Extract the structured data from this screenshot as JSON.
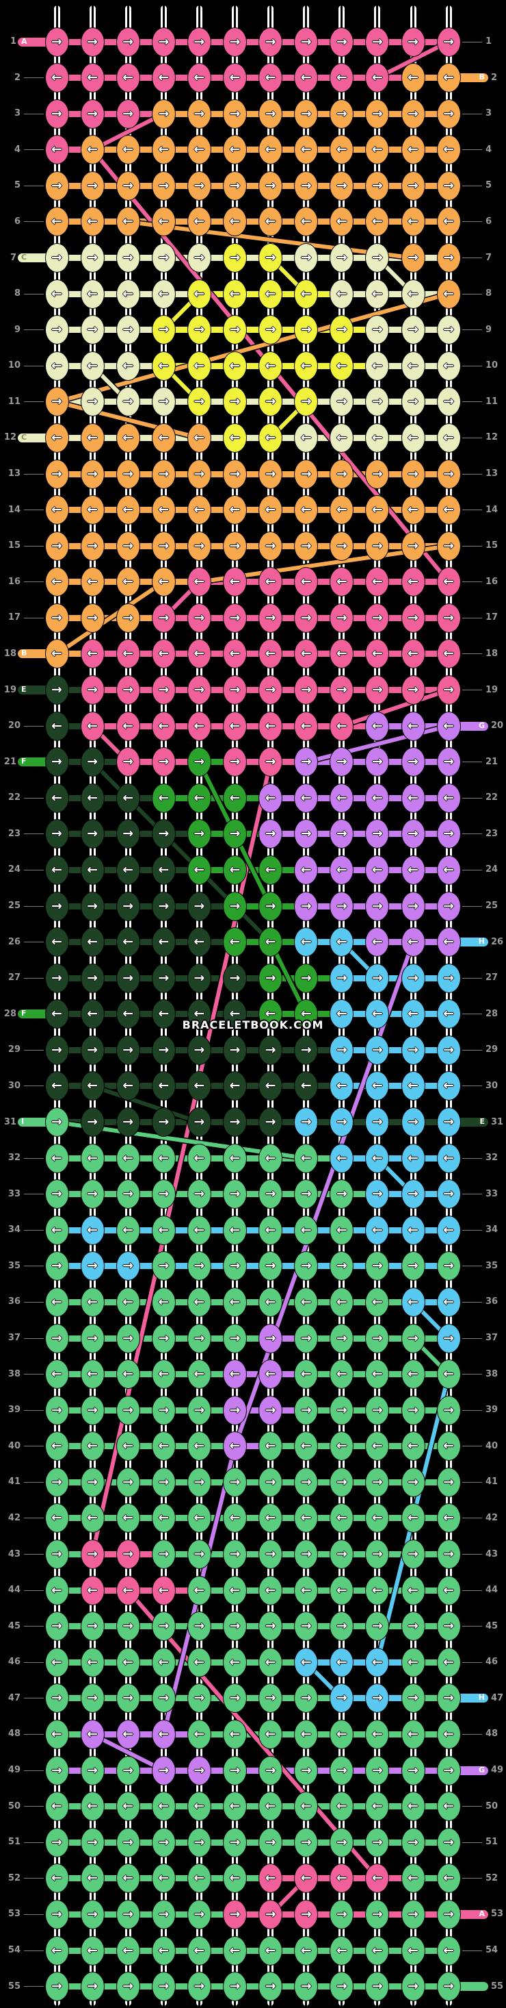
{
  "watermark": "BRACELETBOOK.COM",
  "arrows": {
    "R": "→",
    "L": "←"
  },
  "colors": {
    "P": "#F2609C",
    "O": "#F8A94E",
    "C": "#EAEDBF",
    "Y": "#F1F23C",
    "D": "#1E4224",
    "K": "#2BA22B",
    "G": "#5ACD7F",
    "V": "#C77CEF",
    "B": "#59C9F1"
  },
  "ui": {
    "number_color": "#9b9b9b",
    "line_color": "#7d7d7d",
    "background": "#000000"
  },
  "grid": {
    "rows": 55,
    "cols": 12
  },
  "rows": [
    {
      "n": 1,
      "d": "R",
      "k": "PPPPPPPPPPPP",
      "ll": "A"
    },
    {
      "n": 2,
      "d": "L",
      "k": "PPPPPPPPPPOO",
      "rl": "B"
    },
    {
      "n": 3,
      "d": "R",
      "k": "PPPOOOOOOOOO"
    },
    {
      "n": 4,
      "d": "L",
      "k": "POOOOOOOOOOO"
    },
    {
      "n": 5,
      "d": "R",
      "k": "OOOOOOOOOOOO"
    },
    {
      "n": 6,
      "d": "L",
      "k": "OOOOOOOOOOOO"
    },
    {
      "n": 7,
      "d": "R",
      "k": "CCCCCYYCCCOO",
      "ll": "C"
    },
    {
      "n": 8,
      "d": "L",
      "k": "CCCCYYYYCCCO"
    },
    {
      "n": 9,
      "d": "R",
      "k": "CCCYYYYYYCCC"
    },
    {
      "n": 10,
      "d": "L",
      "k": "CCCYYYYYYCCC"
    },
    {
      "n": 11,
      "d": "R",
      "k": "OCCCYYYYCCCC"
    },
    {
      "n": 12,
      "d": "L",
      "k": "OOOOOYYCCCCC",
      "ll": "C"
    },
    {
      "n": 13,
      "d": "R",
      "k": "OOOOOOOOOOOO"
    },
    {
      "n": 14,
      "d": "L",
      "k": "OOOOOOOOOOOO"
    },
    {
      "n": 15,
      "d": "R",
      "k": "OOOOOOOOOOOO"
    },
    {
      "n": 16,
      "d": "L",
      "k": "OOOOPPPPPPPP"
    },
    {
      "n": 17,
      "d": "R",
      "k": "OOOPPPPPPPPP"
    },
    {
      "n": 18,
      "d": "L",
      "k": "OPPPPPPPPPPP",
      "ll": "B"
    },
    {
      "n": 19,
      "d": "R",
      "k": "DPPPPPPPPPPP",
      "ll": "E"
    },
    {
      "n": 20,
      "d": "L",
      "k": "DPPPPPPPPVVV",
      "rl": "G"
    },
    {
      "n": 21,
      "d": "R",
      "k": "DDPPKPPVVVVV",
      "ll": "F"
    },
    {
      "n": 22,
      "d": "L",
      "k": "DDDKKKVVVVVV"
    },
    {
      "n": 23,
      "d": "R",
      "k": "DDDDKKVVVVVV"
    },
    {
      "n": 24,
      "d": "L",
      "k": "DDDDKKKVVVVV"
    },
    {
      "n": 25,
      "d": "R",
      "k": "DDDDDKKVVVVV"
    },
    {
      "n": 26,
      "d": "L",
      "k": "DDDDDKKBBVVV",
      "rl": "H"
    },
    {
      "n": 27,
      "d": "R",
      "k": "DDDDDDKKBBBB"
    },
    {
      "n": 28,
      "d": "L",
      "k": "DDDDDDKKBBBB",
      "ll": "F"
    },
    {
      "n": 29,
      "d": "R",
      "k": "DDDDDDDDBBBB"
    },
    {
      "n": 30,
      "d": "L",
      "k": "DDDDDDDDBBBB"
    },
    {
      "n": 31,
      "d": "R",
      "k": "GDDDDDDBBBBB",
      "ll": "I",
      "rl": "E"
    },
    {
      "n": 32,
      "d": "L",
      "k": "GGGGGGGGBBBB"
    },
    {
      "n": 33,
      "d": "R",
      "k": "GGGGGGGGGBBB"
    },
    {
      "n": 34,
      "d": "L",
      "k": "GBGGGGGGGBBB"
    },
    {
      "n": 35,
      "d": "R",
      "k": "GBBGGGGGGGGG"
    },
    {
      "n": 36,
      "d": "L",
      "k": "GGGGGGGGGGBB"
    },
    {
      "n": 37,
      "d": "R",
      "k": "GGGGGGVGGGGB"
    },
    {
      "n": 38,
      "d": "L",
      "k": "GGGGGVVGGGGG"
    },
    {
      "n": 39,
      "d": "R",
      "k": "GGGGGVVGGGGG"
    },
    {
      "n": 40,
      "d": "L",
      "k": "GGGGGVGGGGGG"
    },
    {
      "n": 41,
      "d": "R",
      "k": "GGGGGGGGGGGG"
    },
    {
      "n": 42,
      "d": "L",
      "k": "GGGGGGGGGGGG"
    },
    {
      "n": 43,
      "d": "R",
      "k": "GPPGGGGGGGGG"
    },
    {
      "n": 44,
      "d": "L",
      "k": "GPPPGGGGGGGG"
    },
    {
      "n": 45,
      "d": "R",
      "k": "GGGGGGGGGGGG"
    },
    {
      "n": 46,
      "d": "L",
      "k": "GGGGGGGBBBGG"
    },
    {
      "n": 47,
      "d": "R",
      "k": "GGGGGGGGBBGG",
      "rl": "H"
    },
    {
      "n": 48,
      "d": "L",
      "k": "GVVVGGGGGGGG"
    },
    {
      "n": 49,
      "d": "R",
      "k": "GGGVVGGGGGGG",
      "rl": "G"
    },
    {
      "n": 50,
      "d": "L",
      "k": "GGGGGGGGGGGG"
    },
    {
      "n": 51,
      "d": "R",
      "k": "GGGGGGGGGGGG"
    },
    {
      "n": 52,
      "d": "L",
      "k": "GGGGGGPPPPGG"
    },
    {
      "n": 53,
      "d": "R",
      "k": "GGGGGPPPGGGG",
      "rl": "A"
    },
    {
      "n": 54,
      "d": "L",
      "k": "GGGGGGGGGGGG"
    },
    {
      "n": 55,
      "d": "R",
      "k": "GGGGGGGGGGGG",
      "rl": ""
    }
  ],
  "label_colors": {
    "A": "P",
    "B": "O",
    "C": "C",
    "E": "D",
    "F": "K",
    "G": "V",
    "H": "B",
    "I": "G",
    "": "G"
  },
  "conn_overrides": [
    {
      "row": 7,
      "color": "C"
    },
    {
      "row": 11,
      "color": "C"
    },
    {
      "row": 12,
      "color": "C"
    },
    {
      "row": 31,
      "color": "D"
    },
    {
      "row": 34,
      "color": "B"
    },
    {
      "row": 35,
      "color": "B"
    },
    {
      "row": 49,
      "color": "V"
    },
    {
      "row": 53,
      "from": 6,
      "color": "P"
    }
  ],
  "strands": [
    [
      1,
      12,
      2,
      10,
      "P"
    ],
    [
      3,
      4,
      4,
      2,
      "P"
    ],
    [
      4,
      2,
      16,
      12,
      "P"
    ],
    [
      17,
      4,
      16,
      5,
      "P"
    ],
    [
      19,
      12,
      20,
      9,
      "P"
    ],
    [
      20,
      2,
      21,
      3,
      "P"
    ],
    [
      21,
      7,
      43,
      2,
      "P"
    ],
    [
      44,
      3,
      52,
      10,
      "P"
    ],
    [
      53,
      7,
      52,
      8,
      "P"
    ],
    [
      6,
      3,
      7,
      11,
      "O"
    ],
    [
      8,
      12,
      11,
      1,
      "O"
    ],
    [
      11,
      1,
      12,
      5,
      "O"
    ],
    [
      16,
      5,
      15,
      12,
      "O"
    ],
    [
      18,
      1,
      16,
      4,
      "O"
    ],
    [
      7,
      7,
      8,
      8,
      "Y"
    ],
    [
      8,
      5,
      9,
      4,
      "Y"
    ],
    [
      10,
      4,
      11,
      5,
      "Y"
    ],
    [
      11,
      8,
      12,
      7,
      "Y"
    ],
    [
      7,
      10,
      8,
      11,
      "C"
    ],
    [
      10,
      2,
      11,
      3,
      "C"
    ],
    [
      21,
      2,
      26,
      7,
      "D"
    ],
    [
      30,
      2,
      31,
      5,
      "D"
    ],
    [
      21,
      5,
      25,
      7,
      "K"
    ],
    [
      26,
      7,
      28,
      8,
      "K"
    ],
    [
      31,
      1,
      32,
      8,
      "G"
    ],
    [
      37,
      11,
      38,
      12,
      "G"
    ],
    [
      20,
      12,
      21,
      8,
      "V"
    ],
    [
      26,
      11,
      40,
      6,
      "V"
    ],
    [
      40,
      6,
      48,
      4,
      "V"
    ],
    [
      48,
      2,
      49,
      4,
      "V"
    ],
    [
      26,
      9,
      27,
      10,
      "B"
    ],
    [
      32,
      10,
      33,
      11,
      "B"
    ],
    [
      36,
      11,
      37,
      12,
      "B"
    ],
    [
      38,
      12,
      46,
      10,
      "B"
    ],
    [
      46,
      8,
      47,
      9,
      "B"
    ]
  ]
}
